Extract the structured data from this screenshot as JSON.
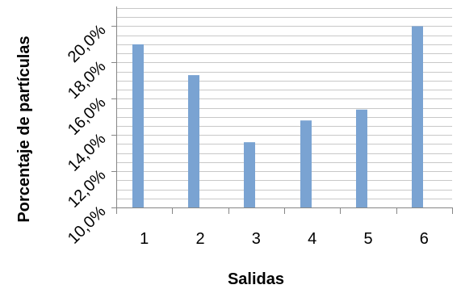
{
  "chart_data": {
    "type": "bar",
    "categories": [
      "1",
      "2",
      "3",
      "4",
      "5",
      "6"
    ],
    "values": [
      0.19,
      0.173,
      0.136,
      0.148,
      0.154,
      0.2
    ],
    "xlabel": "Salidas",
    "ylabel": "Porcentaje de partículas",
    "ylim": [
      0.1,
      0.21
    ],
    "yticks": [
      "10,0%",
      "12,0%",
      "14,0%",
      "16,0%",
      "18,0%",
      "20,0%"
    ],
    "ytick_values": [
      0.1,
      0.12,
      0.14,
      0.16,
      0.18,
      0.2
    ],
    "grid": true,
    "bar_color": "#7aa3d2",
    "grid_color": "#c8c8c8"
  }
}
